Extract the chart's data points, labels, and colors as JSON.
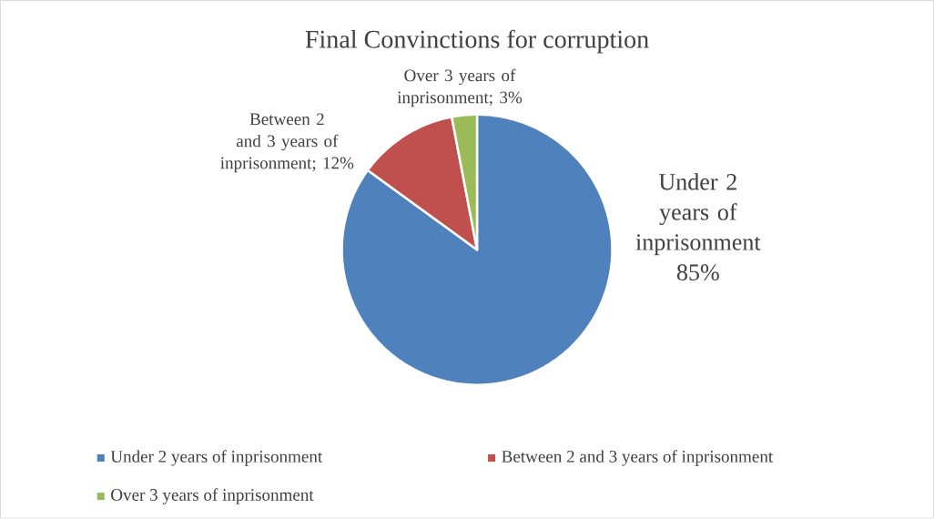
{
  "chart_data": {
    "type": "pie",
    "title": "Final Convinctions for corruption",
    "categories": [
      "Under 2 years of inprisonment",
      "Between 2 and 3 years of inprisonment",
      "Over 3 years of inprisonment"
    ],
    "values": [
      85,
      12,
      3
    ],
    "colors": [
      "#4f81bd",
      "#c0504d",
      "#9bbb59"
    ],
    "value_labels": [
      "Under 2 years of inprisonment 85%",
      "Between 2 and 3 years of inprisonment; 12%",
      "Over 3 years of inprisonment; 3%"
    ],
    "legend": "bottom"
  }
}
